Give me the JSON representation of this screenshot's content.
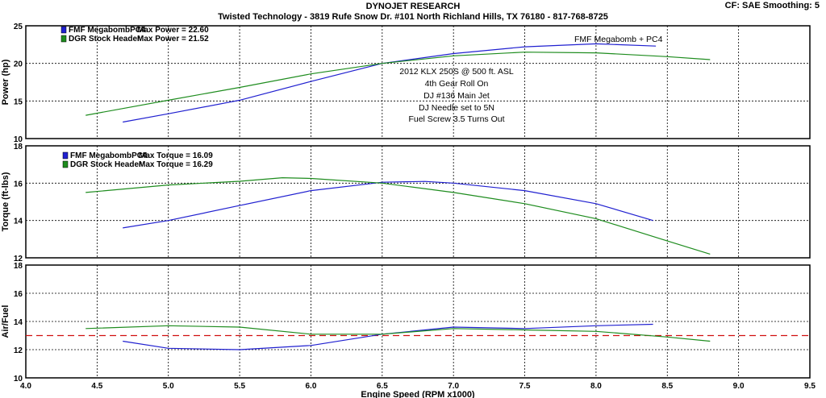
{
  "header": {
    "title": "DYNOJET RESEARCH",
    "subtitle": "Twisted Technology - 3819 Rufe Snow Dr. #101 North Richland Hills, TX 76180 - 817-768-8725",
    "corner": "CF: SAE  Smoothing: 5"
  },
  "colors": {
    "fmf": "#2020d0",
    "dgr": "#1e8c1e",
    "ref": "#d01010",
    "grid": "#000000"
  },
  "chart_data": [
    {
      "type": "line",
      "ylabel": "Power (hp)",
      "ylim": [
        10,
        25
      ],
      "yticks": [
        10,
        15,
        20,
        25
      ],
      "xlim": [
        4.0,
        9.5
      ],
      "grid": true,
      "legend": [
        {
          "name": "FMF MegabombPC4",
          "label": "Max Power = 22.60"
        },
        {
          "name": "DGR Stock Header",
          "label": "Max Power = 21.52"
        }
      ],
      "annotations": [
        "FMF Megabomb + PC4",
        "2012 KLX 250S @ 500 ft. ASL",
        "4th Gear Roll On",
        "DJ #136 Main Jet",
        "DJ Needle set to 5N",
        "Fuel Screw 3.5 Turns Out"
      ],
      "series": [
        {
          "name": "FMF MegabombPC4",
          "color": "fmf",
          "x": [
            4.68,
            5.0,
            5.5,
            6.0,
            6.5,
            7.0,
            7.5,
            8.0,
            8.42
          ],
          "y": [
            12.2,
            13.3,
            15.1,
            17.6,
            20.0,
            21.3,
            22.2,
            22.6,
            22.3
          ]
        },
        {
          "name": "DGR Stock Header",
          "color": "dgr",
          "x": [
            4.42,
            5.0,
            5.5,
            6.0,
            6.5,
            7.0,
            7.5,
            8.0,
            8.5,
            8.8
          ],
          "y": [
            13.1,
            15.1,
            16.8,
            18.6,
            20.0,
            21.0,
            21.5,
            21.4,
            20.9,
            20.5
          ]
        }
      ]
    },
    {
      "type": "line",
      "ylabel": "Torque (ft-lbs)",
      "ylim": [
        12,
        18
      ],
      "yticks": [
        12,
        14,
        16,
        18
      ],
      "xlim": [
        4.0,
        9.5
      ],
      "grid": true,
      "legend": [
        {
          "name": "FMF MegabombPC4",
          "label": "Max Torque = 16.09"
        },
        {
          "name": "DGR Stock Header",
          "label": "Max Torque = 16.29"
        }
      ],
      "series": [
        {
          "name": "FMF MegabombPC4",
          "color": "fmf",
          "x": [
            4.68,
            5.0,
            5.5,
            6.0,
            6.5,
            6.8,
            7.0,
            7.5,
            8.0,
            8.4
          ],
          "y": [
            13.6,
            14.0,
            14.8,
            15.6,
            16.05,
            16.09,
            16.0,
            15.6,
            14.9,
            14.0
          ]
        },
        {
          "name": "DGR Stock Header",
          "color": "dgr",
          "x": [
            4.42,
            5.0,
            5.5,
            5.8,
            6.0,
            6.5,
            7.0,
            7.5,
            8.0,
            8.5,
            8.8
          ],
          "y": [
            15.5,
            15.9,
            16.1,
            16.29,
            16.25,
            16.0,
            15.5,
            14.9,
            14.1,
            12.9,
            12.2
          ]
        }
      ]
    },
    {
      "type": "line",
      "ylabel": "Air/Fuel",
      "xlabel": "Engine Speed (RPM x1000)",
      "ylim": [
        10,
        18
      ],
      "yticks": [
        10,
        12,
        14,
        16,
        18
      ],
      "xlim": [
        4.0,
        9.5
      ],
      "xticks": [
        "4.0",
        "4.5",
        "5.0",
        "5.5",
        "6.0",
        "6.5",
        "7.0",
        "7.5",
        "8.0",
        "8.5",
        "9.0",
        "9.5"
      ],
      "grid": true,
      "reference_line": 13.0,
      "series": [
        {
          "name": "FMF MegabombPC4",
          "color": "fmf",
          "x": [
            4.68,
            5.0,
            5.5,
            6.0,
            6.5,
            7.0,
            7.5,
            8.0,
            8.4
          ],
          "y": [
            12.6,
            12.1,
            12.0,
            12.3,
            13.1,
            13.6,
            13.5,
            13.7,
            13.8
          ]
        },
        {
          "name": "DGR Stock Header",
          "color": "dgr",
          "x": [
            4.42,
            5.0,
            5.5,
            6.0,
            6.5,
            7.0,
            7.5,
            8.0,
            8.5,
            8.8
          ],
          "y": [
            13.5,
            13.7,
            13.6,
            13.1,
            13.1,
            13.5,
            13.4,
            13.3,
            12.9,
            12.6
          ]
        }
      ]
    }
  ]
}
